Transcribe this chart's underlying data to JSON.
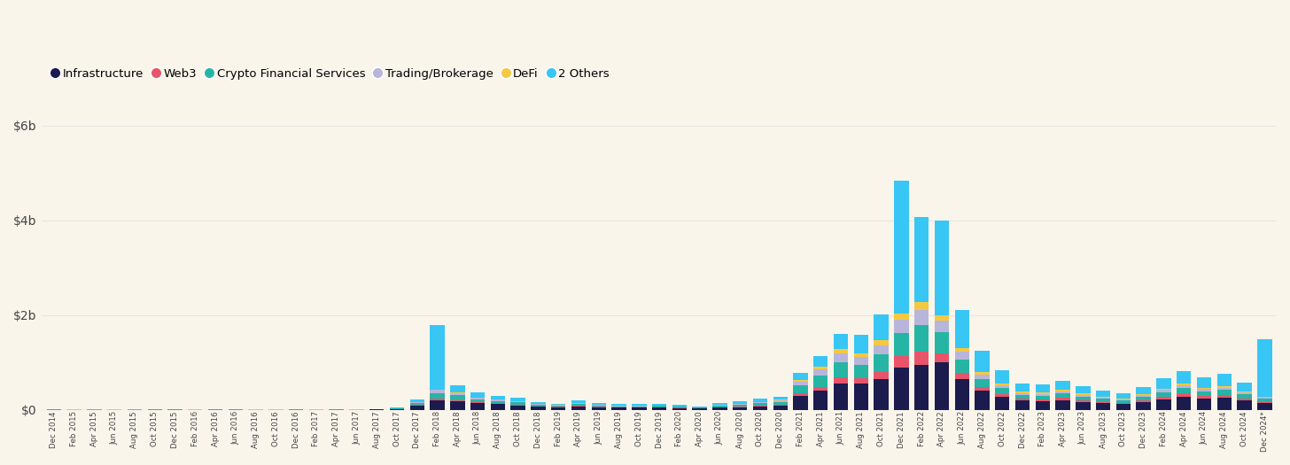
{
  "background_color": "#faf5eb",
  "categories": [
    "Dec 2014",
    "Feb 2015",
    "Apr 2015",
    "Jun 2015",
    "Aug 2015",
    "Oct 2015",
    "Dec 2015",
    "Feb 2016",
    "Apr 2016",
    "Jun 2016",
    "Aug 2016",
    "Oct 2016",
    "Dec 2016",
    "Feb 2017",
    "Apr 2017",
    "Jun 2017",
    "Aug 2017",
    "Oct 2017",
    "Dec 2017",
    "Feb 2018",
    "Apr 2018",
    "Jun 2018",
    "Aug 2018",
    "Oct 2018",
    "Dec 2018",
    "Feb 2019",
    "Apr 2019",
    "Jun 2019",
    "Aug 2019",
    "Oct 2019",
    "Dec 2019",
    "Feb 2020",
    "Apr 2020",
    "Jun 2020",
    "Aug 2020",
    "Oct 2020",
    "Dec 2020",
    "Feb 2021",
    "Apr 2021",
    "Jun 2021",
    "Aug 2021",
    "Oct 2021",
    "Dec 2021",
    "Feb 2022",
    "Apr 2022",
    "Jun 2022",
    "Aug 2022",
    "Oct 2022",
    "Dec 2022",
    "Feb 2023",
    "Apr 2023",
    "Jun 2023",
    "Aug 2023",
    "Oct 2023",
    "Dec 2023",
    "Feb 2024",
    "Apr 2024",
    "Jun 2024",
    "Aug 2024",
    "Oct 2024",
    "Dec 2024*"
  ],
  "series": {
    "Infrastructure": [
      0.005,
      0.003,
      0.002,
      0.003,
      0.002,
      0.005,
      0.005,
      0.003,
      0.005,
      0.005,
      0.003,
      0.003,
      0.005,
      0.003,
      0.005,
      0.003,
      0.01,
      0.02,
      0.1,
      0.2,
      0.18,
      0.14,
      0.12,
      0.1,
      0.07,
      0.06,
      0.08,
      0.06,
      0.05,
      0.05,
      0.05,
      0.04,
      0.03,
      0.05,
      0.06,
      0.08,
      0.1,
      0.3,
      0.4,
      0.55,
      0.55,
      0.65,
      0.9,
      0.95,
      1.0,
      0.65,
      0.4,
      0.28,
      0.2,
      0.18,
      0.2,
      0.16,
      0.14,
      0.12,
      0.16,
      0.22,
      0.28,
      0.24,
      0.26,
      0.2,
      0.14
    ],
    "Web3": [
      0.001,
      0.001,
      0.001,
      0.001,
      0.001,
      0.001,
      0.001,
      0.001,
      0.001,
      0.001,
      0.001,
      0.001,
      0.001,
      0.001,
      0.001,
      0.001,
      0.001,
      0.002,
      0.01,
      0.04,
      0.03,
      0.02,
      0.015,
      0.015,
      0.008,
      0.007,
      0.012,
      0.008,
      0.006,
      0.006,
      0.008,
      0.006,
      0.005,
      0.008,
      0.01,
      0.015,
      0.015,
      0.06,
      0.09,
      0.14,
      0.12,
      0.16,
      0.24,
      0.28,
      0.2,
      0.14,
      0.08,
      0.06,
      0.04,
      0.04,
      0.05,
      0.04,
      0.03,
      0.03,
      0.04,
      0.055,
      0.065,
      0.055,
      0.055,
      0.045,
      0.035
    ],
    "Crypto Financial Services": [
      0.001,
      0.001,
      0.001,
      0.001,
      0.001,
      0.001,
      0.001,
      0.001,
      0.001,
      0.001,
      0.001,
      0.001,
      0.001,
      0.001,
      0.001,
      0.001,
      0.004,
      0.008,
      0.04,
      0.12,
      0.1,
      0.065,
      0.055,
      0.05,
      0.032,
      0.025,
      0.04,
      0.032,
      0.024,
      0.024,
      0.024,
      0.024,
      0.016,
      0.032,
      0.04,
      0.048,
      0.056,
      0.16,
      0.24,
      0.32,
      0.28,
      0.36,
      0.48,
      0.56,
      0.44,
      0.28,
      0.176,
      0.12,
      0.08,
      0.08,
      0.096,
      0.08,
      0.064,
      0.056,
      0.072,
      0.096,
      0.112,
      0.096,
      0.104,
      0.08,
      0.064
    ],
    "Trading/Brokerage": [
      0.001,
      0.001,
      0.001,
      0.001,
      0.001,
      0.001,
      0.001,
      0.001,
      0.001,
      0.001,
      0.001,
      0.001,
      0.001,
      0.001,
      0.001,
      0.001,
      0.001,
      0.004,
      0.015,
      0.06,
      0.05,
      0.032,
      0.024,
      0.016,
      0.016,
      0.008,
      0.016,
      0.008,
      0.008,
      0.008,
      0.008,
      0.008,
      0.008,
      0.016,
      0.016,
      0.024,
      0.032,
      0.08,
      0.12,
      0.176,
      0.16,
      0.2,
      0.28,
      0.32,
      0.24,
      0.16,
      0.096,
      0.064,
      0.04,
      0.04,
      0.048,
      0.04,
      0.032,
      0.024,
      0.04,
      0.048,
      0.056,
      0.048,
      0.048,
      0.04,
      0.032
    ],
    "DeFi": [
      0.001,
      0.001,
      0.001,
      0.001,
      0.001,
      0.001,
      0.001,
      0.001,
      0.001,
      0.001,
      0.001,
      0.001,
      0.001,
      0.001,
      0.001,
      0.001,
      0.001,
      0.002,
      0.004,
      0.016,
      0.012,
      0.008,
      0.006,
      0.005,
      0.004,
      0.003,
      0.005,
      0.003,
      0.002,
      0.002,
      0.004,
      0.003,
      0.002,
      0.004,
      0.006,
      0.008,
      0.012,
      0.04,
      0.064,
      0.096,
      0.08,
      0.096,
      0.144,
      0.16,
      0.12,
      0.08,
      0.048,
      0.032,
      0.024,
      0.024,
      0.032,
      0.024,
      0.016,
      0.016,
      0.024,
      0.032,
      0.04,
      0.032,
      0.032,
      0.024,
      0.016
    ],
    "2 Others": [
      0.003,
      0.003,
      0.002,
      0.003,
      0.003,
      0.004,
      0.003,
      0.003,
      0.003,
      0.004,
      0.003,
      0.003,
      0.004,
      0.003,
      0.004,
      0.003,
      0.006,
      0.01,
      0.05,
      1.35,
      0.15,
      0.1,
      0.08,
      0.07,
      0.04,
      0.03,
      0.05,
      0.04,
      0.03,
      0.03,
      0.03,
      0.025,
      0.02,
      0.04,
      0.05,
      0.07,
      0.06,
      0.15,
      0.22,
      0.32,
      0.4,
      0.55,
      2.8,
      1.8,
      2.0,
      0.8,
      0.45,
      0.28,
      0.18,
      0.17,
      0.18,
      0.15,
      0.12,
      0.1,
      0.15,
      0.22,
      0.26,
      0.22,
      0.26,
      0.18,
      1.2
    ]
  },
  "colors": {
    "Infrastructure": "#1b1b4e",
    "Web3": "#e8546a",
    "Crypto Financial Services": "#26b5a5",
    "Trading/Brokerage": "#b8b5da",
    "DeFi": "#f5c842",
    "2 Others": "#38c6f5"
  },
  "ylim": [
    0,
    6.2
  ],
  "yticks": [
    0,
    2,
    4,
    6
  ],
  "ytick_labels": [
    "$0",
    "$2b",
    "$4b",
    "$6b"
  ],
  "legend_labels": [
    "Infrastructure",
    "Web3",
    "Crypto Financial Services",
    "Trading/Brokerage",
    "DeFi",
    "2 Others"
  ]
}
